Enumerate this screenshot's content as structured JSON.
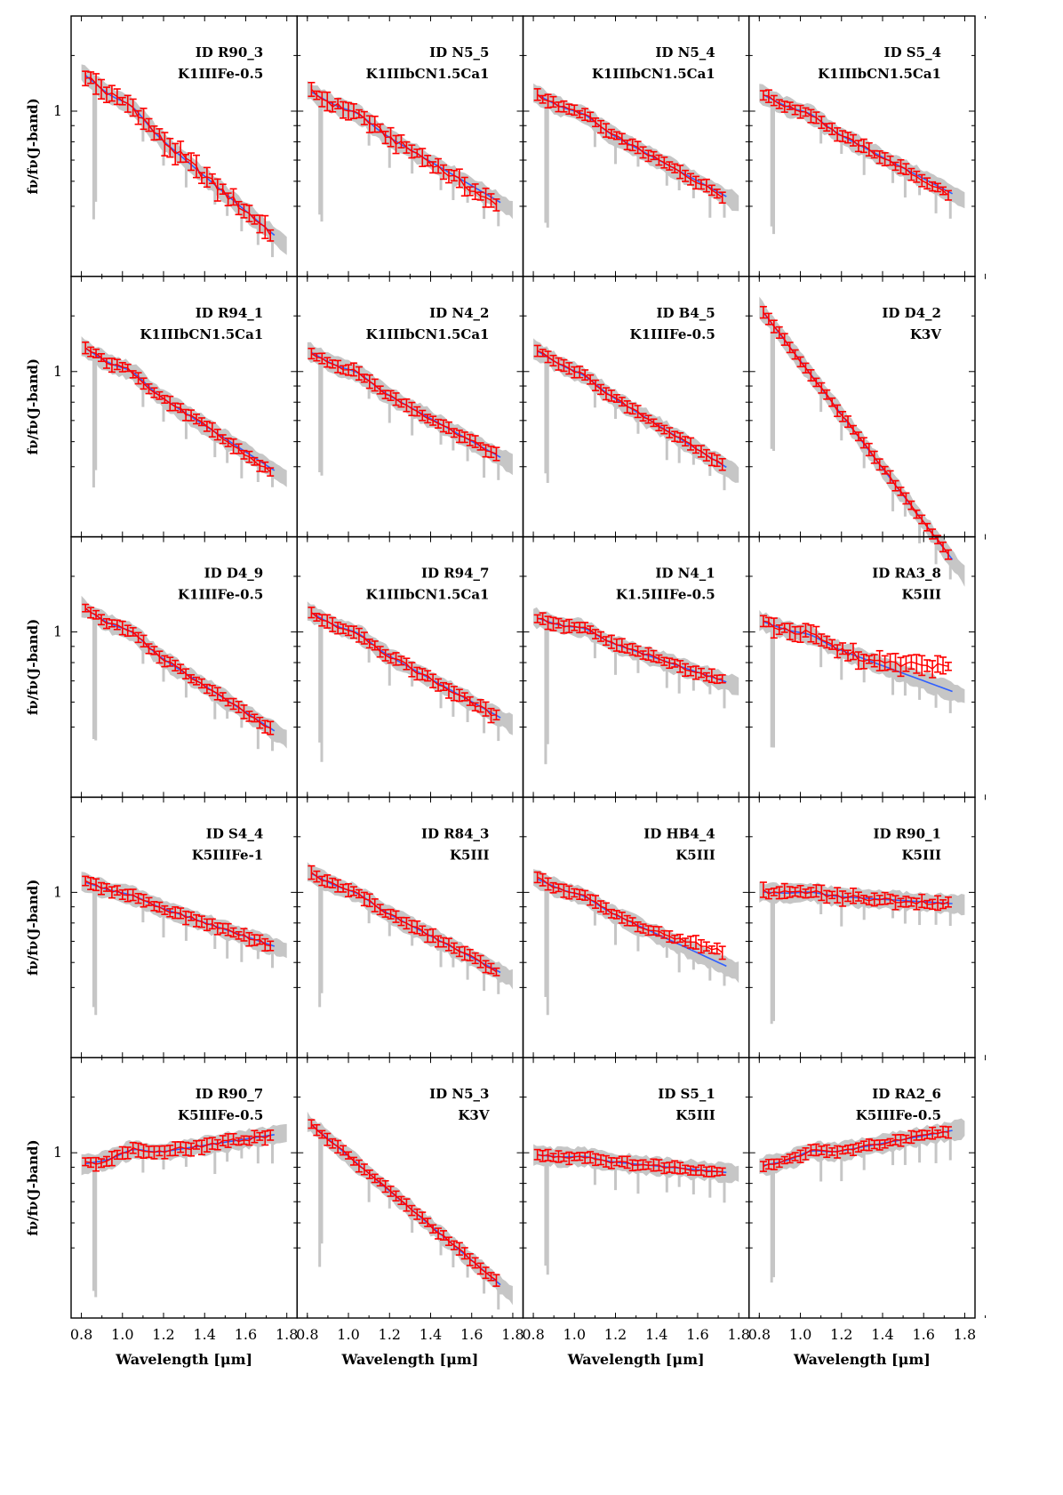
{
  "figure": {
    "ylabel": "fν/fν(J-band)",
    "xlabel": "Wavelength [μm]",
    "x_ticks": [
      "0.8",
      "1.0",
      "1.2",
      "1.4",
      "1.6",
      "1.8"
    ],
    "y_tick": "1",
    "colors": {
      "observed": "#ff0000",
      "model": "#2f5fff",
      "envelope": "#c6c6c6",
      "frame": "#000000"
    }
  },
  "chart_data": {
    "type": "line",
    "xlim": [
      0.75,
      1.85
    ],
    "ylim": [
      0.3,
      2.0
    ],
    "yscale": "log",
    "panels": [
      {
        "id": "ID R90_3",
        "model": "K1IIIFe-0.5",
        "slope": 0.55,
        "bump": 0.06,
        "obs_offset": 0.0,
        "obs_noise": 0.15,
        "start": 1.25
      },
      {
        "id": "ID N5_5",
        "model": "K1IIIbCN1.5Ca1",
        "slope": 0.38,
        "bump": 0.04,
        "obs_offset": -0.04,
        "obs_noise": 0.11,
        "start": 1.12
      },
      {
        "id": "ID N5_4",
        "model": "K1IIIbCN1.5Ca1",
        "slope": 0.35,
        "bump": 0.04,
        "obs_offset": -0.01,
        "obs_noise": 0.06,
        "start": 1.1
      },
      {
        "id": "ID S5_4",
        "model": "K1IIIbCN1.5Ca1",
        "slope": 0.34,
        "bump": 0.04,
        "obs_offset": -0.02,
        "obs_noise": 0.06,
        "start": 1.1
      },
      {
        "id": "ID R94_1",
        "model": "K1IIIbCN1.5Ca1",
        "slope": 0.42,
        "bump": 0.05,
        "obs_offset": -0.03,
        "obs_noise": 0.07,
        "start": 1.15
      },
      {
        "id": "ID N4_2",
        "model": "K1IIIbCN1.5Ca1",
        "slope": 0.36,
        "bump": 0.04,
        "obs_offset": 0.0,
        "obs_noise": 0.06,
        "start": 1.12
      },
      {
        "id": "ID B4_5",
        "model": "K1IIIFe-0.5",
        "slope": 0.4,
        "bump": 0.03,
        "obs_offset": 0.0,
        "obs_noise": 0.05,
        "start": 1.13
      },
      {
        "id": "ID D4_2",
        "model": "K3V",
        "slope": 0.85,
        "bump": 0.0,
        "obs_offset": 0.0,
        "obs_noise": 0.05,
        "start": 1.45
      },
      {
        "id": "ID D4_9",
        "model": "K1IIIFe-0.5",
        "slope": 0.42,
        "bump": 0.05,
        "obs_offset": -0.01,
        "obs_noise": 0.06,
        "start": 1.15
      },
      {
        "id": "ID R94_7",
        "model": "K1IIIbCN1.5Ca1",
        "slope": 0.36,
        "bump": 0.04,
        "obs_offset": -0.01,
        "obs_noise": 0.07,
        "start": 1.12
      },
      {
        "id": "ID N4_1",
        "model": "K1.5IIIFe-0.5",
        "slope": 0.22,
        "bump": 0.04,
        "obs_offset": 0.0,
        "obs_noise": 0.06,
        "start": 1.09
      },
      {
        "id": "ID RA3_8",
        "model": "K5III",
        "slope": 0.24,
        "bump": 0.03,
        "obs_offset": 0.18,
        "obs_noise": 0.12,
        "start": 1.06
      },
      {
        "id": "ID S4_4",
        "model": "K5IIIFe-1",
        "slope": 0.22,
        "bump": 0.02,
        "obs_offset": 0.0,
        "obs_noise": 0.06,
        "start": 1.06
      },
      {
        "id": "ID R84_3",
        "model": "K5III",
        "slope": 0.34,
        "bump": 0.03,
        "obs_offset": 0.0,
        "obs_noise": 0.06,
        "start": 1.12
      },
      {
        "id": "ID HB4_4",
        "model": "K5III",
        "slope": 0.3,
        "bump": 0.03,
        "obs_offset": 0.1,
        "obs_noise": 0.06,
        "start": 1.08
      },
      {
        "id": "ID R90_1",
        "model": "K5III",
        "slope": 0.04,
        "bump": 0.02,
        "obs_offset": 0.0,
        "obs_noise": 0.08,
        "start": 1.0
      },
      {
        "id": "ID R90_7",
        "model": "K5IIIFe-0.5",
        "slope": -0.1,
        "bump": 0.05,
        "obs_offset": 0.0,
        "obs_noise": 0.07,
        "start": 0.93
      },
      {
        "id": "ID N5_3",
        "model": "K3V",
        "slope": 0.55,
        "bump": 0.0,
        "obs_offset": 0.0,
        "obs_noise": 0.05,
        "start": 1.18
      },
      {
        "id": "ID S5_1",
        "model": "K5III",
        "slope": 0.06,
        "bump": 0.02,
        "obs_offset": 0.0,
        "obs_noise": 0.05,
        "start": 0.98
      },
      {
        "id": "ID RA2_6",
        "model": "K5IIIFe-0.5",
        "slope": -0.12,
        "bump": 0.04,
        "obs_offset": 0.0,
        "obs_noise": 0.05,
        "start": 0.92
      }
    ]
  }
}
